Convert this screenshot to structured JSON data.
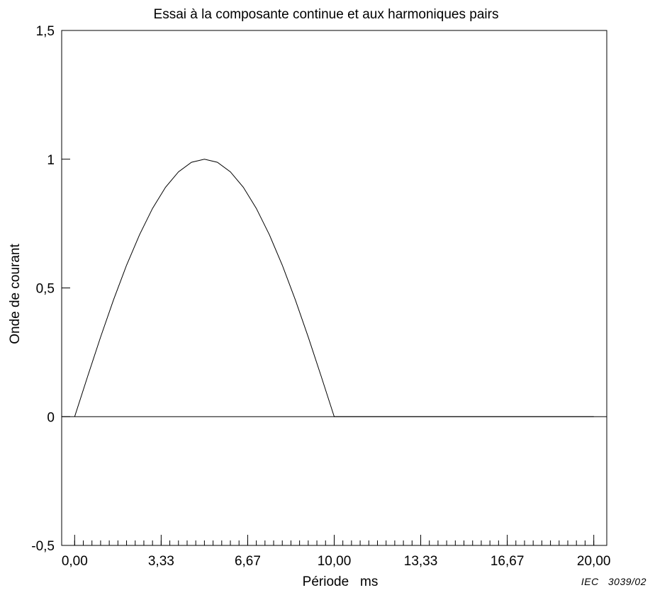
{
  "chart_data": {
    "type": "line",
    "title": "Essai à la composante continue et aux harmoniques pairs",
    "xlabel": "Période   ms",
    "ylabel": "Onde de courant",
    "xlim": [
      -0.5,
      20.5
    ],
    "ylim": [
      -0.5,
      1.5
    ],
    "x_tick_labels": [
      "0,00",
      "3,33",
      "6,67",
      "10,00",
      "13,33",
      "16,67",
      "20,00"
    ],
    "x_tick_values": [
      0,
      3.333,
      6.667,
      10,
      13.333,
      16.667,
      20
    ],
    "y_tick_labels": [
      "-0,5",
      "0",
      "0,5",
      "1",
      "1,5"
    ],
    "y_tick_values": [
      -0.5,
      0,
      0.5,
      1,
      1.5
    ],
    "grid": false,
    "legend": "none",
    "series": [
      {
        "x": [
          0,
          0.5,
          1,
          1.5,
          2,
          2.5,
          3,
          3.5,
          4,
          4.5,
          5,
          5.5,
          6,
          6.5,
          7,
          7.5,
          8,
          8.5,
          9,
          9.5,
          10,
          10.5,
          11,
          12,
          13,
          14,
          15,
          16,
          17,
          18,
          19,
          20
        ],
        "values": [
          0,
          0.156,
          0.309,
          0.454,
          0.588,
          0.707,
          0.809,
          0.891,
          0.951,
          0.988,
          1.0,
          0.988,
          0.951,
          0.891,
          0.809,
          0.707,
          0.588,
          0.454,
          0.309,
          0.156,
          0,
          0,
          0,
          0,
          0,
          0,
          0,
          0,
          0,
          0,
          0,
          0
        ],
        "color": "#000000"
      }
    ]
  },
  "footer": {
    "credit": "IEC   3039/02"
  }
}
